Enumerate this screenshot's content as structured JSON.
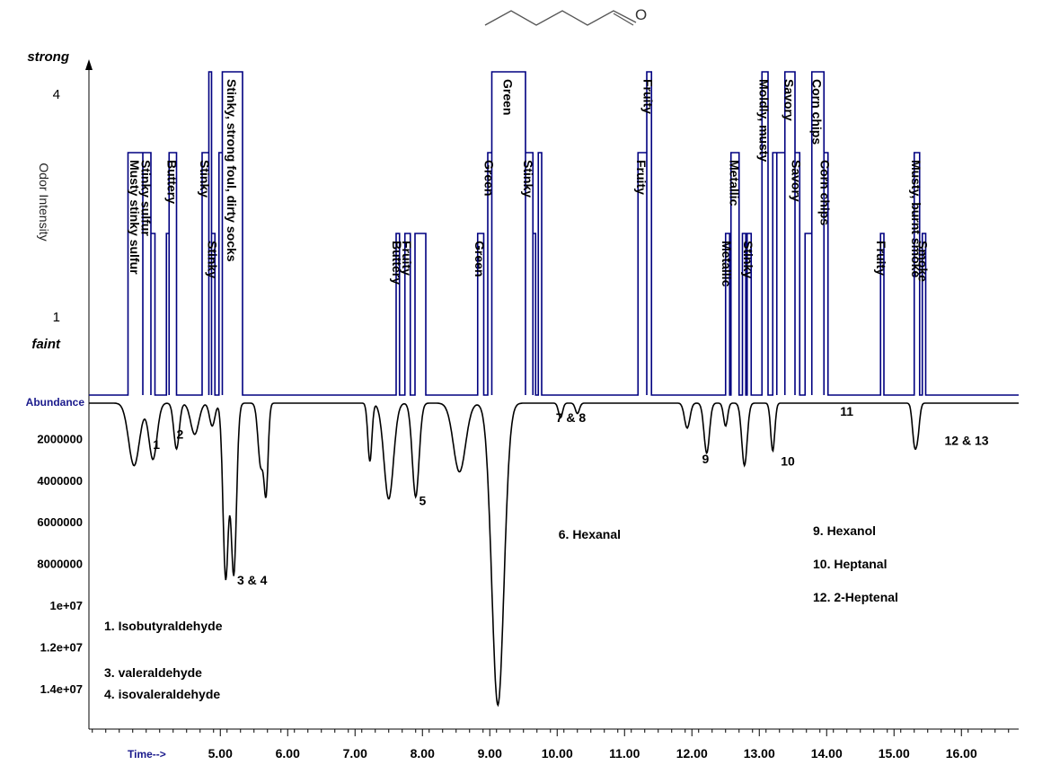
{
  "chart_data": [
    {
      "type": "line",
      "name": "olfactogram",
      "color": "#000080",
      "ylabel": "Odor Intensity",
      "y_level_labels": [
        {
          "label": "strong",
          "value": null
        },
        {
          "label": "4",
          "value": 4
        },
        {
          "label": "1",
          "value": 1
        },
        {
          "label": "faint",
          "value": null
        }
      ],
      "ylim": [
        0,
        4.3
      ],
      "xlim": [
        3.05,
        16.85
      ],
      "events": [
        {
          "start": 3.63,
          "end": 3.85,
          "intensity": 3,
          "label": "Musty stinky sulfur"
        },
        {
          "start": 3.85,
          "end": 3.97,
          "intensity": 3,
          "label": "Stinky sulfur"
        },
        {
          "start": 3.97,
          "end": 4.03,
          "intensity": 2,
          "label": ""
        },
        {
          "start": 4.2,
          "end": 4.24,
          "intensity": 2,
          "label": ""
        },
        {
          "start": 4.24,
          "end": 4.35,
          "intensity": 3,
          "label": "Buttery"
        },
        {
          "start": 4.73,
          "end": 4.83,
          "intensity": 3,
          "label": "Stinky"
        },
        {
          "start": 4.83,
          "end": 4.87,
          "intensity": 4,
          "label": ""
        },
        {
          "start": 4.87,
          "end": 4.92,
          "intensity": 2,
          "label": "Stinky"
        },
        {
          "start": 4.98,
          "end": 5.03,
          "intensity": 3,
          "label": ""
        },
        {
          "start": 5.03,
          "end": 5.33,
          "intensity": 4,
          "label": "Stinky, strong foul, dirty socks"
        },
        {
          "start": 7.61,
          "end": 7.66,
          "intensity": 2,
          "label": "Buttery"
        },
        {
          "start": 7.74,
          "end": 7.82,
          "intensity": 2,
          "label": "Fruity"
        },
        {
          "start": 7.89,
          "end": 8.05,
          "intensity": 2,
          "label": ""
        },
        {
          "start": 8.82,
          "end": 8.91,
          "intensity": 2,
          "label": "Green"
        },
        {
          "start": 8.97,
          "end": 9.03,
          "intensity": 3,
          "label": "Green"
        },
        {
          "start": 9.03,
          "end": 9.53,
          "intensity": 4,
          "label": "Green"
        },
        {
          "start": 9.53,
          "end": 9.64,
          "intensity": 3,
          "label": "Stinky"
        },
        {
          "start": 9.64,
          "end": 9.68,
          "intensity": 2,
          "label": ""
        },
        {
          "start": 9.72,
          "end": 9.77,
          "intensity": 3,
          "label": ""
        },
        {
          "start": 11.2,
          "end": 11.33,
          "intensity": 3,
          "label": "Fruity"
        },
        {
          "start": 11.33,
          "end": 11.4,
          "intensity": 4,
          "label": "Fruity"
        },
        {
          "start": 12.5,
          "end": 12.56,
          "intensity": 2,
          "label": "Metallic"
        },
        {
          "start": 12.58,
          "end": 12.7,
          "intensity": 3,
          "label": "Metallic"
        },
        {
          "start": 12.75,
          "end": 12.8,
          "intensity": 2,
          "label": ""
        },
        {
          "start": 12.82,
          "end": 12.88,
          "intensity": 2,
          "label": "Stinky"
        },
        {
          "start": 13.04,
          "end": 13.13,
          "intensity": 4,
          "label": "Moldly, musty"
        },
        {
          "start": 13.2,
          "end": 13.26,
          "intensity": 3,
          "label": ""
        },
        {
          "start": 13.26,
          "end": 13.38,
          "intensity": 3,
          "label": ""
        },
        {
          "start": 13.38,
          "end": 13.53,
          "intensity": 4,
          "label": "Savory"
        },
        {
          "start": 13.53,
          "end": 13.6,
          "intensity": 3,
          "label": "Savory"
        },
        {
          "start": 13.68,
          "end": 13.78,
          "intensity": 2,
          "label": ""
        },
        {
          "start": 13.78,
          "end": 13.96,
          "intensity": 4,
          "label": "Corn chips"
        },
        {
          "start": 13.96,
          "end": 14.02,
          "intensity": 3,
          "label": "Corn chips"
        },
        {
          "start": 14.8,
          "end": 14.85,
          "intensity": 2,
          "label": "Fruity"
        },
        {
          "start": 15.3,
          "end": 15.38,
          "intensity": 3,
          "label": "Musty, burnt smoke"
        },
        {
          "start": 15.42,
          "end": 15.47,
          "intensity": 2,
          "label": "Smoke"
        }
      ]
    },
    {
      "type": "line",
      "name": "chromatogram",
      "color": "#000000",
      "title": "",
      "xlabel": "Time-->",
      "ylabel": "Abundance",
      "x_ticks": [
        "5.00",
        "6.00",
        "7.00",
        "8.00",
        "9.00",
        "10.00",
        "11.00",
        "12.00",
        "13.00",
        "14.00",
        "15.00",
        "16.00"
      ],
      "y_ticks": [
        "2000000",
        "4000000",
        "6000000",
        "8000000",
        "1e+07",
        "1.2e+07",
        "1.4e+07"
      ],
      "xlim": [
        3.05,
        16.85
      ],
      "ylim": [
        0,
        15000000
      ],
      "baseline": 300000,
      "peaks": [
        {
          "rt": 3.72,
          "height": 3000000,
          "width": 0.08
        },
        {
          "rt": 4.0,
          "height": 2700000,
          "width": 0.06
        },
        {
          "rt": 4.35,
          "height": 2200000,
          "width": 0.04
        },
        {
          "rt": 4.62,
          "height": 1500000,
          "width": 0.06
        },
        {
          "rt": 4.88,
          "height": 1100000,
          "width": 0.04
        },
        {
          "rt": 5.08,
          "height": 8400000,
          "width": 0.04
        },
        {
          "rt": 5.2,
          "height": 8200000,
          "width": 0.04
        },
        {
          "rt": 5.6,
          "height": 3000000,
          "width": 0.04
        },
        {
          "rt": 5.68,
          "height": 4100000,
          "width": 0.03
        },
        {
          "rt": 7.22,
          "height": 2800000,
          "width": 0.03
        },
        {
          "rt": 7.5,
          "height": 4600000,
          "width": 0.07
        },
        {
          "rt": 7.9,
          "height": 4500000,
          "width": 0.05
        },
        {
          "rt": 8.55,
          "height": 3300000,
          "width": 0.09
        },
        {
          "rt": 9.12,
          "height": 14500000,
          "width": 0.09
        },
        {
          "rt": 10.05,
          "height": 700000,
          "width": 0.03
        },
        {
          "rt": 10.3,
          "height": 500000,
          "width": 0.03
        },
        {
          "rt": 11.93,
          "height": 1200000,
          "width": 0.04
        },
        {
          "rt": 12.22,
          "height": 2400000,
          "width": 0.04
        },
        {
          "rt": 12.5,
          "height": 1100000,
          "width": 0.03
        },
        {
          "rt": 12.78,
          "height": 3000000,
          "width": 0.04
        },
        {
          "rt": 13.2,
          "height": 2300000,
          "width": 0.03
        },
        {
          "rt": 15.3,
          "height": 1700000,
          "width": 0.03
        },
        {
          "rt": 15.35,
          "height": 1400000,
          "width": 0.03
        }
      ],
      "peak_labels": [
        {
          "text": "1",
          "rt": 4.0,
          "abundance": 2500000
        },
        {
          "text": "2",
          "rt": 4.35,
          "abundance": 2000000
        },
        {
          "text": "3 & 4",
          "rt": 5.25,
          "abundance": 9000000
        },
        {
          "text": "5",
          "rt": 7.95,
          "abundance": 5200000
        },
        {
          "text": "6. Hexanal",
          "rt": 10.02,
          "abundance": 6800000
        },
        {
          "text": "7 & 8",
          "rt": 9.98,
          "abundance": 1200000
        },
        {
          "text": "9",
          "rt": 12.15,
          "abundance": 3200000
        },
        {
          "text": "10",
          "rt": 13.32,
          "abundance": 3300000
        },
        {
          "text": "11",
          "rt": 14.2,
          "abundance": 900000
        },
        {
          "text": "12 & 13",
          "rt": 15.75,
          "abundance": 2300000
        }
      ],
      "compound_legend": [
        "1. Isobutyraldehyde",
        "3. valeraldehyde",
        "4. isovaleraldehyde",
        "9. Hexanol",
        "10. Heptanal",
        "12. 2-Heptenal"
      ]
    }
  ],
  "molecule": {
    "atom_label": "O"
  }
}
